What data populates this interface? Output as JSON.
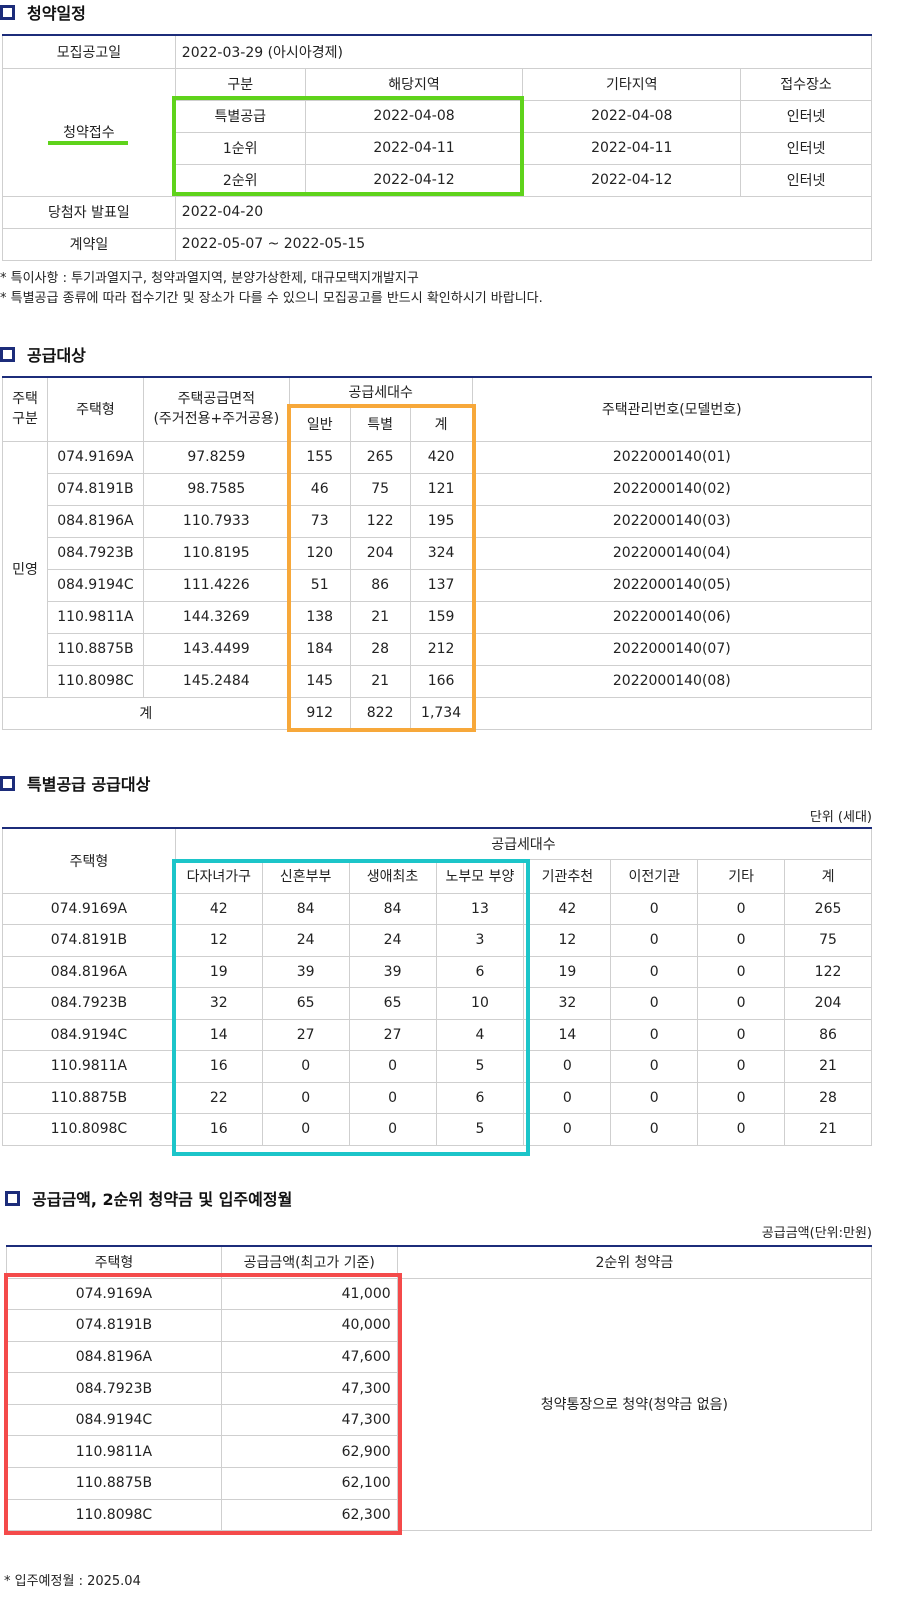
{
  "s1": {
    "title": "청약일정",
    "rows": {
      "announce_label": "모집공고일",
      "announce_value": "2022-03-29 (아시아경제)",
      "receipt_label": "청약접수",
      "headers": [
        "구분",
        "해당지역",
        "기타지역",
        "접수장소"
      ],
      "receipt_rows": [
        [
          "특별공급",
          "2022-04-08",
          "2022-04-08",
          "인터넷"
        ],
        [
          "1순위",
          "2022-04-11",
          "2022-04-11",
          "인터넷"
        ],
        [
          "2순위",
          "2022-04-12",
          "2022-04-12",
          "인터넷"
        ]
      ],
      "winner_label": "당첨자 발표일",
      "winner_value": "2022-04-20",
      "contract_label": "계약일",
      "contract_value": "2022-05-07 ~ 2022-05-15"
    },
    "notes": [
      "* 특이사항 : 투기과열지구, 청약과열지역, 분양가상한제, 대규모택지개발지구",
      "* 특별공급 종류에 따라 접수기간 및 장소가 다를 수 있으니 모집공고를 반드시 확인하시기 바랍니다."
    ]
  },
  "s2": {
    "title": "공급대상",
    "headers": {
      "gubun": "주택\n구분",
      "type": "주택형",
      "area": "주택공급면적\n(주거전용+주거공용)",
      "supply": "공급세대수",
      "general": "일반",
      "special": "특별",
      "total": "계",
      "mgmt": "주택관리번호(모델번호)"
    },
    "gubun_value": "민영",
    "rows": [
      [
        "074.9169A",
        "97.8259",
        "155",
        "265",
        "420",
        "2022000140(01)"
      ],
      [
        "074.8191B",
        "98.7585",
        "46",
        "75",
        "121",
        "2022000140(02)"
      ],
      [
        "084.8196A",
        "110.7933",
        "73",
        "122",
        "195",
        "2022000140(03)"
      ],
      [
        "084.7923B",
        "110.8195",
        "120",
        "204",
        "324",
        "2022000140(04)"
      ],
      [
        "084.9194C",
        "111.4226",
        "51",
        "86",
        "137",
        "2022000140(05)"
      ],
      [
        "110.9811A",
        "144.3269",
        "138",
        "21",
        "159",
        "2022000140(06)"
      ],
      [
        "110.8875B",
        "143.4499",
        "184",
        "28",
        "212",
        "2022000140(07)"
      ],
      [
        "110.8098C",
        "145.2484",
        "145",
        "21",
        "166",
        "2022000140(08)"
      ]
    ],
    "sum_label": "계",
    "sum": [
      "912",
      "822",
      "1,734"
    ]
  },
  "s3": {
    "title": "특별공급 공급대상",
    "unit": "단위 (세대)",
    "type_header": "주택형",
    "supply_header": "공급세대수",
    "headers": [
      "다자녀가구",
      "신혼부부",
      "생애최초",
      "노부모 부양",
      "기관추천",
      "이전기관",
      "기타",
      "계"
    ],
    "rows": [
      [
        "074.9169A",
        "42",
        "84",
        "84",
        "13",
        "42",
        "0",
        "0",
        "265"
      ],
      [
        "074.8191B",
        "12",
        "24",
        "24",
        "3",
        "12",
        "0",
        "0",
        "75"
      ],
      [
        "084.8196A",
        "19",
        "39",
        "39",
        "6",
        "19",
        "0",
        "0",
        "122"
      ],
      [
        "084.7923B",
        "32",
        "65",
        "65",
        "10",
        "32",
        "0",
        "0",
        "204"
      ],
      [
        "084.9194C",
        "14",
        "27",
        "27",
        "4",
        "14",
        "0",
        "0",
        "86"
      ],
      [
        "110.9811A",
        "16",
        "0",
        "0",
        "5",
        "0",
        "0",
        "0",
        "21"
      ],
      [
        "110.8875B",
        "22",
        "0",
        "0",
        "6",
        "0",
        "0",
        "0",
        "28"
      ],
      [
        "110.8098C",
        "16",
        "0",
        "0",
        "5",
        "0",
        "0",
        "0",
        "21"
      ]
    ]
  },
  "s4": {
    "title": "공급금액, 2순위 청약금 및 입주예정월",
    "unit": "공급금액(단위:만원)",
    "headers": [
      "주택형",
      "공급금액(최고가 기준)",
      "2순위 청약금"
    ],
    "rows": [
      [
        "074.9169A",
        "41,000"
      ],
      [
        "074.8191B",
        "40,000"
      ],
      [
        "084.8196A",
        "47,600"
      ],
      [
        "084.7923B",
        "47,300"
      ],
      [
        "084.9194C",
        "47,300"
      ],
      [
        "110.9811A",
        "62,900"
      ],
      [
        "110.8875B",
        "62,100"
      ],
      [
        "110.8098C",
        "62,300"
      ]
    ],
    "deposit": "청약통장으로 청약(청약금 없음)",
    "note": "* 입주예정월 : 2025.04"
  },
  "colors": {
    "navy": "#1c2c7a",
    "green": "#5fd31b",
    "orange": "#f7a83a",
    "cyan": "#1cc5c9",
    "red": "#f44a4a"
  }
}
